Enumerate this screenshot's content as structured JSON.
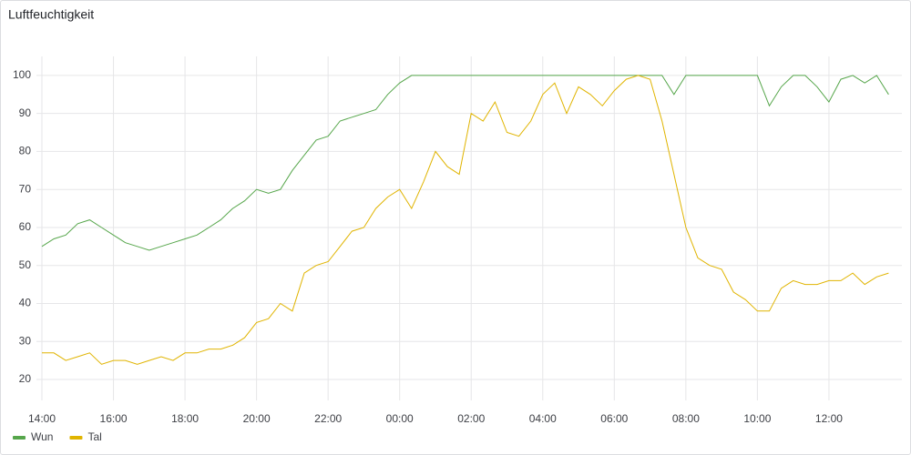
{
  "chart_data": {
    "type": "line",
    "title": "Luftfeuchtigkeit",
    "x": [
      "14:00",
      "14:20",
      "14:40",
      "15:00",
      "15:20",
      "15:40",
      "16:00",
      "16:20",
      "16:40",
      "17:00",
      "17:20",
      "17:40",
      "18:00",
      "18:20",
      "18:40",
      "19:00",
      "19:20",
      "19:40",
      "20:00",
      "20:20",
      "20:40",
      "21:00",
      "21:20",
      "21:40",
      "22:00",
      "22:20",
      "22:40",
      "23:00",
      "23:20",
      "23:40",
      "00:00",
      "00:20",
      "00:40",
      "01:00",
      "01:20",
      "01:40",
      "02:00",
      "02:20",
      "02:40",
      "03:00",
      "03:20",
      "03:40",
      "04:00",
      "04:20",
      "04:40",
      "05:00",
      "05:20",
      "05:40",
      "06:00",
      "06:20",
      "06:40",
      "07:00",
      "07:20",
      "07:40",
      "08:00",
      "08:20",
      "08:40",
      "09:00",
      "09:20",
      "09:40",
      "10:00",
      "10:20",
      "10:40",
      "11:00",
      "11:20",
      "11:40",
      "12:00",
      "12:20",
      "12:40",
      "13:00",
      "13:20",
      "13:40"
    ],
    "series": [
      {
        "name": "Wun",
        "color": "#56a64b",
        "values": [
          55,
          57,
          58,
          61,
          62,
          60,
          58,
          56,
          55,
          54,
          55,
          56,
          57,
          58,
          60,
          62,
          65,
          67,
          70,
          69,
          70,
          75,
          79,
          83,
          84,
          88,
          89,
          90,
          91,
          95,
          98,
          100,
          100,
          100,
          100,
          100,
          100,
          100,
          100,
          100,
          100,
          100,
          100,
          100,
          100,
          100,
          100,
          100,
          100,
          100,
          100,
          100,
          100,
          95,
          100,
          100,
          100,
          100,
          100,
          100,
          100,
          92,
          97,
          100,
          100,
          97,
          93,
          99,
          100,
          98,
          100,
          95
        ]
      },
      {
        "name": "Tal",
        "color": "#e0b400",
        "values": [
          27,
          27,
          25,
          26,
          27,
          24,
          25,
          25,
          24,
          25,
          26,
          25,
          27,
          27,
          28,
          28,
          29,
          31,
          35,
          36,
          40,
          38,
          48,
          50,
          51,
          55,
          59,
          60,
          65,
          68,
          70,
          65,
          72,
          80,
          76,
          74,
          90,
          88,
          93,
          85,
          84,
          88,
          95,
          98,
          90,
          97,
          95,
          92,
          96,
          99,
          100,
          99,
          88,
          74,
          60,
          52,
          50,
          49,
          43,
          41,
          38,
          38,
          44,
          46,
          45,
          45,
          46,
          46,
          48,
          45,
          47,
          48
        ]
      }
    ],
    "ylim": [
      14.5,
      105
    ],
    "yticks": [
      20,
      30,
      40,
      50,
      60,
      70,
      80,
      90,
      100
    ],
    "grid": true,
    "legend": "bottom-left"
  }
}
